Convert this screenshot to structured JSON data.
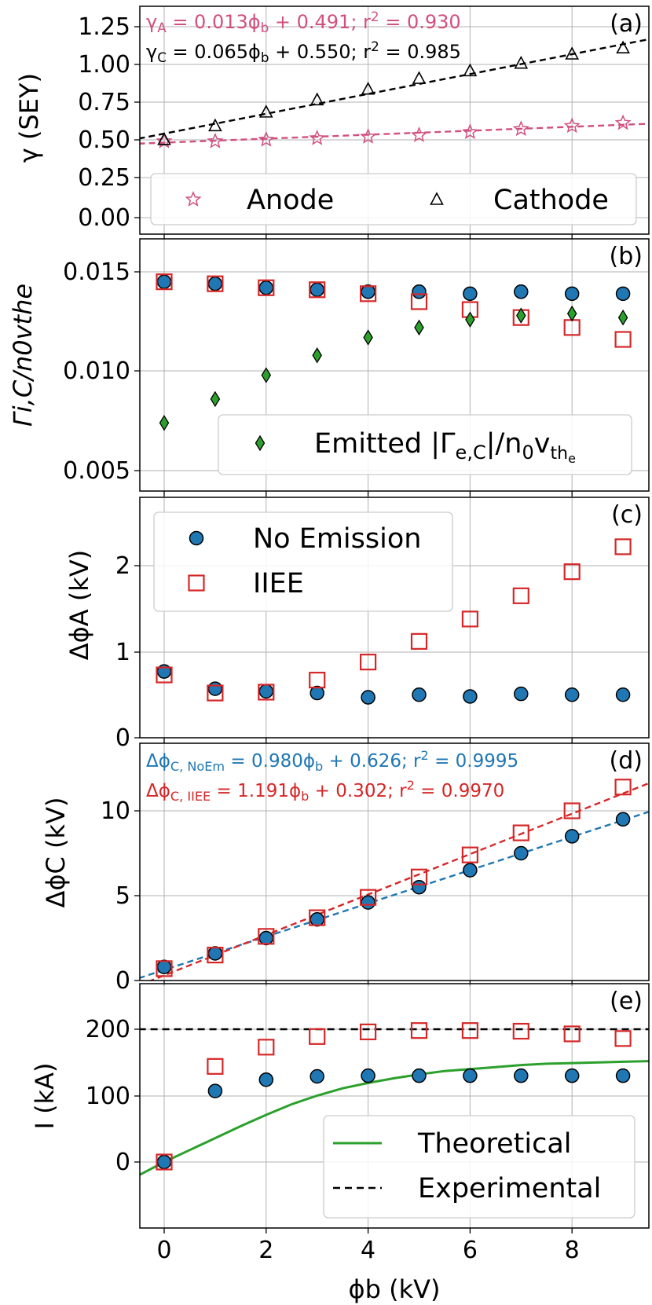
{
  "chart_data": [
    {
      "id": "a",
      "type": "scatter",
      "panel_label": "(a)",
      "ylabel": "γ (SEY)",
      "xlim": [
        -0.5,
        9.5
      ],
      "ylim": [
        -0.1,
        1.4
      ],
      "yticks": [
        "0.00",
        "0.25",
        "0.50",
        "0.75",
        "1.00",
        "1.25"
      ],
      "x": [
        0,
        1,
        2,
        3,
        4,
        5,
        6,
        7,
        8,
        9
      ],
      "series": [
        {
          "name": "Anode",
          "marker": "star",
          "color": "#d1507f",
          "values": [
            0.5,
            0.5,
            0.51,
            0.52,
            0.53,
            0.54,
            0.56,
            0.58,
            0.6,
            0.62
          ]
        },
        {
          "name": "Cathode",
          "marker": "triangle",
          "color": "#000000",
          "values": [
            0.51,
            0.6,
            0.69,
            0.77,
            0.84,
            0.91,
            0.96,
            1.01,
            1.07,
            1.11
          ]
        }
      ],
      "fits": [
        {
          "slope": 0.013,
          "intercept": 0.491,
          "color": "#d1507f",
          "label": "γA = 0.013ϕb + 0.491; r² = 0.930"
        },
        {
          "slope": 0.065,
          "intercept": 0.55,
          "color": "#000000",
          "label": "γC = 0.065ϕb + 0.550; r² = 0.985"
        }
      ],
      "legend": "bottom"
    },
    {
      "id": "b",
      "type": "scatter",
      "panel_label": "(b)",
      "ylabel": "Γi,C/n0vthe",
      "xlim": [
        -0.5,
        9.5
      ],
      "ylim": [
        0.004,
        0.0159
      ],
      "yticks": [
        "0.005",
        "0.010",
        "0.015"
      ],
      "x": [
        0,
        1,
        2,
        3,
        4,
        5,
        6,
        7,
        8,
        9
      ],
      "series": [
        {
          "name": "No Emission",
          "marker": "circle",
          "color": "#1f77b4",
          "values": [
            0.0145,
            0.0144,
            0.0142,
            0.0141,
            0.014,
            0.014,
            0.0139,
            0.014,
            0.0139,
            0.0139
          ]
        },
        {
          "name": "IIEE",
          "marker": "square",
          "color": "#d62728",
          "values": [
            0.0145,
            0.0144,
            0.0142,
            0.0141,
            0.0139,
            0.0135,
            0.0131,
            0.0127,
            0.0122,
            0.0116
          ]
        },
        {
          "name": "Emitted |Γe,C|/n0vthe",
          "marker": "diamond",
          "color": "#2ca02c",
          "values": [
            0.0074,
            0.0086,
            0.0098,
            0.0108,
            0.0117,
            0.0122,
            0.0126,
            0.0128,
            0.0129,
            0.0127
          ]
        }
      ],
      "legend": "bottom-right"
    },
    {
      "id": "c",
      "type": "scatter",
      "panel_label": "(c)",
      "ylabel": "ΔϕA (kV)",
      "xlim": [
        -0.5,
        9.5
      ],
      "ylim": [
        0,
        2.8
      ],
      "yticks": [
        "0",
        "1",
        "2"
      ],
      "x": [
        0,
        1,
        2,
        3,
        4,
        5,
        6,
        7,
        8,
        9
      ],
      "series": [
        {
          "name": "No Emission",
          "marker": "circle",
          "color": "#1f77b4",
          "values": [
            0.77,
            0.57,
            0.54,
            0.52,
            0.47,
            0.5,
            0.48,
            0.51,
            0.5,
            0.5
          ]
        },
        {
          "name": "IIEE",
          "marker": "square",
          "color": "#d62728",
          "values": [
            0.73,
            0.52,
            0.53,
            0.67,
            0.88,
            1.12,
            1.38,
            1.65,
            1.93,
            2.22
          ]
        }
      ],
      "legend": "top-left"
    },
    {
      "id": "d",
      "type": "scatter",
      "panel_label": "(d)",
      "ylabel": "ΔϕC (kV)",
      "xlim": [
        -0.5,
        9.5
      ],
      "ylim": [
        0,
        13.5
      ],
      "yticks": [
        "0",
        "5",
        "10"
      ],
      "x": [
        0,
        1,
        2,
        3,
        4,
        5,
        6,
        7,
        8,
        9
      ],
      "series": [
        {
          "name": "No Emission",
          "marker": "circle",
          "color": "#1f77b4",
          "values": [
            0.8,
            1.6,
            2.5,
            3.6,
            4.6,
            5.5,
            6.5,
            7.5,
            8.5,
            9.5
          ]
        },
        {
          "name": "IIEE",
          "marker": "square",
          "color": "#d62728",
          "values": [
            0.7,
            1.5,
            2.6,
            3.7,
            4.9,
            6.1,
            7.4,
            8.7,
            10.0,
            11.4
          ]
        }
      ],
      "fits": [
        {
          "slope": 0.98,
          "intercept": 0.626,
          "color": "#1f77b4",
          "label": "ΔϕC,NoEm = 0.980ϕb + 0.626; r² = 0.9995"
        },
        {
          "slope": 1.191,
          "intercept": 0.302,
          "color": "#d62728",
          "label": "ΔϕC,IIEE = 1.191ϕb + 0.302; r² = 0.9970"
        }
      ]
    },
    {
      "id": "e",
      "type": "line",
      "panel_label": "(e)",
      "ylabel": "I (kA)",
      "xlabel": "ϕb (kV)",
      "xlim": [
        -0.5,
        9.5
      ],
      "ylim": [
        -90,
        260
      ],
      "yticks": [
        "0",
        "100",
        "200"
      ],
      "xticks": [
        "0",
        "2",
        "4",
        "6",
        "8"
      ],
      "x": [
        0,
        1,
        2,
        3,
        4,
        5,
        6,
        7,
        8,
        9
      ],
      "series": [
        {
          "name": "No Emission",
          "marker": "circle",
          "color": "#1f77b4",
          "values": [
            0,
            107,
            124,
            129,
            130,
            130,
            130,
            130,
            130,
            130
          ]
        },
        {
          "name": "IIEE",
          "marker": "square",
          "color": "#d62728",
          "values": [
            0,
            144,
            173,
            189,
            196,
            198,
            198,
            197,
            193,
            186
          ]
        }
      ],
      "lines": [
        {
          "name": "Theoretical",
          "style": "solid",
          "color": "#2ca02c",
          "x": [
            -0.5,
            0,
            0.5,
            1,
            1.5,
            2,
            2.5,
            3,
            3.5,
            4,
            4.5,
            5,
            5.5,
            6,
            6.5,
            7,
            7.5,
            8,
            8.5,
            9,
            9.5
          ],
          "y": [
            -20,
            0,
            18,
            36,
            54,
            71,
            87,
            100,
            111,
            119,
            126,
            132,
            137,
            140,
            143,
            146,
            148,
            149,
            150,
            151,
            152
          ]
        },
        {
          "name": "Experimental",
          "style": "dashed",
          "color": "#000000",
          "x": [
            -0.5,
            9.5
          ],
          "y": [
            200,
            200
          ]
        }
      ],
      "legend": "bottom-right"
    }
  ],
  "legend_labels": {
    "anode": "Anode",
    "cathode": "Cathode",
    "emitted": "Emitted |Γ",
    "emitted_sub": "e,C",
    "emitted_tail": "|/n",
    "no_emission": "No Emission",
    "iiee": "IIEE",
    "theoretical": "Theoretical",
    "experimental": "Experimental"
  },
  "annotations": {
    "fit_a_anode": {
      "sym": "γ",
      "sub": "A",
      "mid": " = 0.013ϕ",
      "sub2": "b",
      "tail": " + 0.491; r",
      "sup": "2",
      "end": " = 0.930"
    },
    "fit_a_cathode": {
      "sym": "γ",
      "sub": "C",
      "mid": " = 0.065ϕ",
      "sub2": "b",
      "tail": " + 0.550; r",
      "sup": "2",
      "end": " = 0.985"
    },
    "fit_d_noem": {
      "sym": "Δϕ",
      "sub": "C, NoEm",
      "mid": " = 0.980ϕ",
      "sub2": "b",
      "tail": " + 0.626; r",
      "sup": "2",
      "end": " = 0.9995"
    },
    "fit_d_iiee": {
      "sym": "Δϕ",
      "sub": "C, IIEE",
      "mid": " = 1.191ϕ",
      "sub2": "b",
      "tail": " + 0.302; r",
      "sup": "2",
      "end": " = 0.9970"
    }
  }
}
